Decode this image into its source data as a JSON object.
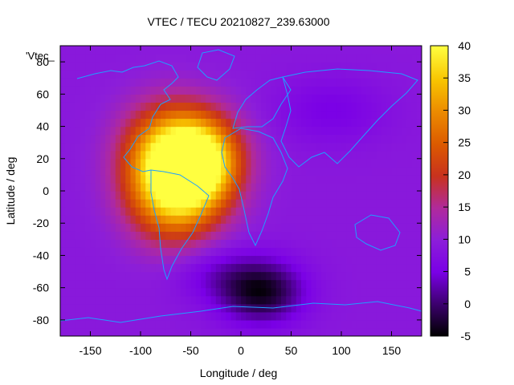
{
  "chart_data": {
    "type": "heatmap",
    "title": "VTEC / TECU 20210827_239.63000",
    "xlabel": "Longitude / deg",
    "ylabel": "Latitude / deg",
    "legend_key": "'Vtec_",
    "xlim": [
      -180,
      180
    ],
    "ylim": [
      -90,
      90
    ],
    "x_ticks": [
      -150,
      -100,
      -50,
      0,
      50,
      100,
      150
    ],
    "y_ticks": [
      -80,
      -60,
      -40,
      -20,
      0,
      20,
      40,
      60,
      80
    ],
    "colorbar": {
      "range": [
        -5,
        40
      ],
      "ticks": [
        -5,
        0,
        5,
        10,
        15,
        20,
        25,
        30,
        35,
        40
      ],
      "palette": "black-purple-red-orange-yellow"
    },
    "overlay": "coastlines",
    "features": [
      {
        "lon": -40,
        "lat": 20,
        "vtec": 35
      },
      {
        "lon": -65,
        "lat": 0,
        "vtec": 34
      },
      {
        "lon": -55,
        "lat": -15,
        "vtec": 32
      },
      {
        "lon": 20,
        "lat": -62,
        "vtec": -4
      },
      {
        "lon": 90,
        "lat": 50,
        "vtec": 5
      }
    ],
    "background_vtec": 9
  }
}
